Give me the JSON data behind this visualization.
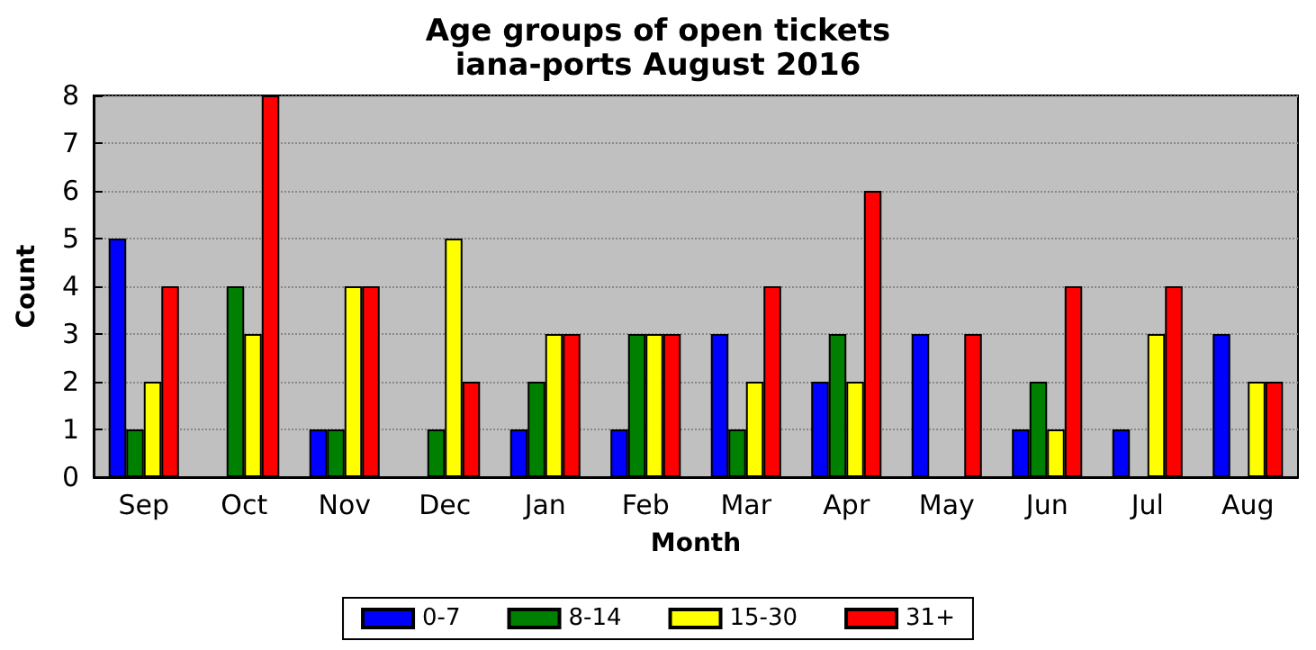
{
  "chart_data": {
    "type": "bar",
    "title": "Age groups of open tickets",
    "subtitle": "iana-ports August 2016",
    "xlabel": "Month",
    "ylabel": "Count",
    "categories": [
      "Sep",
      "Oct",
      "Nov",
      "Dec",
      "Jan",
      "Feb",
      "Mar",
      "Apr",
      "May",
      "Jun",
      "Jul",
      "Aug"
    ],
    "series": [
      {
        "name": "0-7",
        "color": "#0000ff",
        "values": [
          5,
          0,
          1,
          0,
          1,
          1,
          3,
          2,
          3,
          1,
          1,
          3
        ]
      },
      {
        "name": "8-14",
        "color": "#008000",
        "values": [
          1,
          4,
          1,
          1,
          2,
          3,
          1,
          3,
          0,
          2,
          0,
          0
        ]
      },
      {
        "name": "15-30",
        "color": "#ffff00",
        "values": [
          2,
          3,
          4,
          5,
          3,
          3,
          2,
          2,
          0,
          1,
          3,
          2
        ]
      },
      {
        "name": "31+",
        "color": "#ff0000",
        "values": [
          4,
          8,
          4,
          2,
          3,
          3,
          4,
          6,
          3,
          4,
          4,
          2
        ]
      }
    ],
    "ylim": [
      0,
      8
    ],
    "yticks": [
      0,
      1,
      2,
      3,
      4,
      5,
      6,
      7,
      8
    ],
    "grid": "y",
    "legend": "bottom"
  }
}
